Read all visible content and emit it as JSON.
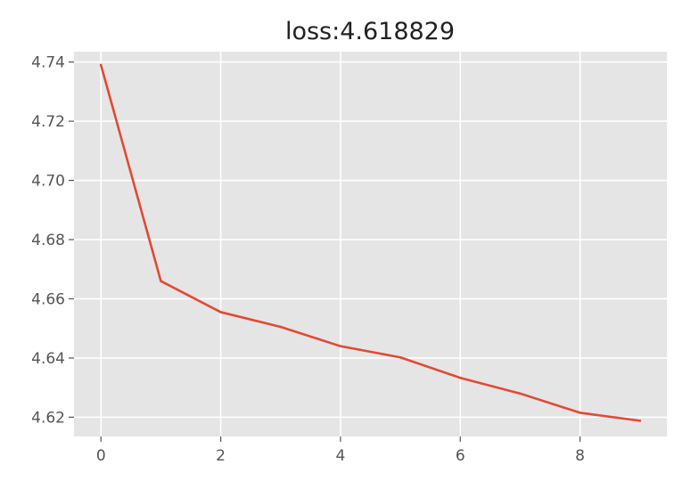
{
  "chart_data": {
    "type": "line",
    "title": "loss:4.618829",
    "xlabel": "",
    "ylabel": "",
    "xlim": [
      -0.45,
      9.45
    ],
    "ylim": [
      4.6135,
      4.7435
    ],
    "x_ticks": [
      0,
      2,
      4,
      6,
      8
    ],
    "y_ticks": [
      4.62,
      4.64,
      4.66,
      4.68,
      4.7,
      4.72,
      4.74
    ],
    "x_tick_labels": [
      "0",
      "2",
      "4",
      "6",
      "8"
    ],
    "y_tick_labels": [
      "4.62",
      "4.64",
      "4.66",
      "4.68",
      "4.70",
      "4.72",
      "4.74"
    ],
    "grid": true,
    "series": [
      {
        "color": "#E24A33",
        "x": [
          0,
          1,
          2,
          3,
          4,
          5,
          6,
          7,
          8,
          9
        ],
        "values": [
          4.739,
          4.666,
          4.6555,
          4.6505,
          4.644,
          4.6402,
          4.6333,
          4.628,
          4.6215,
          4.6188
        ]
      }
    ],
    "colors": {
      "plot_background": "#E5E5E5",
      "grid": "#FFFFFF",
      "tick_label": "#555555"
    }
  }
}
